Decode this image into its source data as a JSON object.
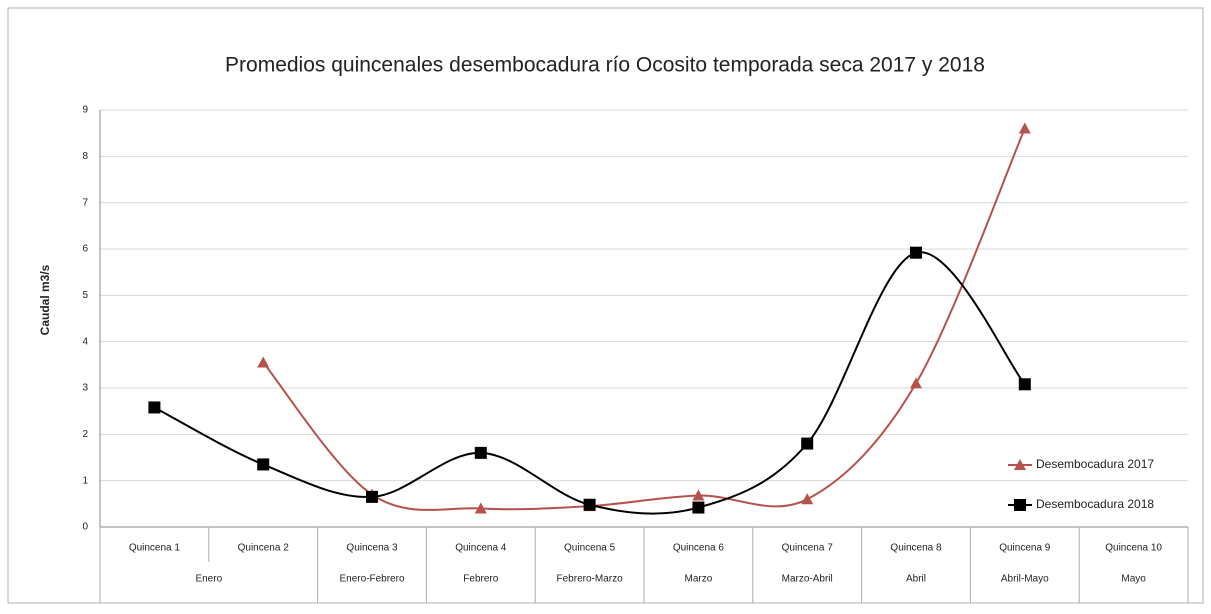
{
  "chart_data": {
    "type": "line",
    "title": "Promedios quincenales desembocadura río Ocosito temporada seca 2017 y 2018",
    "y_label": "Caudal m3/s",
    "categories": [
      "Quincena 1",
      "Quincena 2",
      "Quincena 3",
      "Quincena 4",
      "Quincena 5",
      "Quincena 6",
      "Quincena 7",
      "Quincena 8",
      "Quincena 9",
      "Quincena 10"
    ],
    "period_groups": [
      {
        "label": "Enero",
        "span": 2
      },
      {
        "label": "Enero-Febrero",
        "span": 1
      },
      {
        "label": "Febrero",
        "span": 1
      },
      {
        "label": "Febrero-Marzo",
        "span": 1
      },
      {
        "label": "Marzo",
        "span": 1
      },
      {
        "label": "Marzo-Abril",
        "span": 1
      },
      {
        "label": "Abril",
        "span": 1
      },
      {
        "label": "Abril-Mayo",
        "span": 1
      },
      {
        "label": "Mayo",
        "span": 1
      }
    ],
    "series": [
      {
        "name": "Desembocadura 2017",
        "color": "#b5524c",
        "marker": "triangle",
        "values": [
          null,
          3.55,
          0.7,
          0.4,
          0.45,
          0.68,
          0.6,
          3.1,
          8.6,
          null
        ]
      },
      {
        "name": "Desembocadura 2018",
        "color": "#000000",
        "marker": "square",
        "values": [
          2.58,
          1.35,
          0.65,
          1.6,
          0.48,
          0.42,
          1.8,
          5.92,
          3.08,
          null
        ]
      }
    ],
    "ylim": [
      0,
      9
    ],
    "yticks": [
      0,
      1,
      2,
      3,
      4,
      5,
      6,
      7,
      8,
      9
    ],
    "grid": true,
    "smooth": true,
    "legend": "lower right"
  }
}
